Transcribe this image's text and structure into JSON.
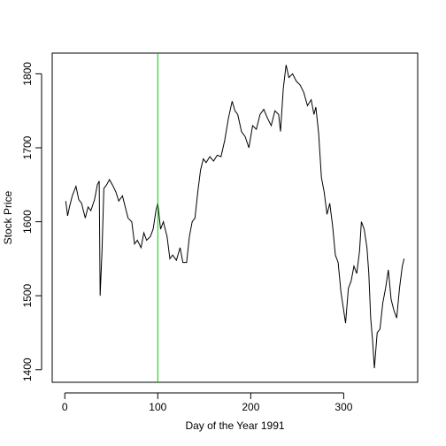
{
  "chart_data": {
    "type": "line",
    "x_label": "Day of the Year 1991",
    "y_label": "Stock Price",
    "x": [
      1,
      3,
      5,
      8,
      12,
      15,
      18,
      22,
      25,
      28,
      32,
      35,
      37,
      38,
      40,
      42,
      45,
      48,
      52,
      55,
      58,
      62,
      65,
      68,
      72,
      75,
      78,
      82,
      85,
      88,
      92,
      95,
      98,
      100,
      103,
      106,
      110,
      113,
      116,
      120,
      124,
      127,
      131,
      134,
      137,
      140,
      143,
      146,
      149,
      152,
      156,
      160,
      164,
      168,
      172,
      176,
      180,
      183,
      186,
      190,
      194,
      198,
      202,
      206,
      210,
      214,
      218,
      222,
      226,
      230,
      232,
      235,
      238,
      241,
      245,
      249,
      253,
      257,
      261,
      265,
      268,
      270,
      273,
      276,
      279,
      282,
      285,
      288,
      291,
      294,
      297,
      300,
      302,
      305,
      308,
      311,
      314,
      317,
      319,
      322,
      325,
      327,
      329,
      331,
      333,
      336,
      339,
      342,
      345,
      348,
      351,
      354,
      357,
      360,
      363,
      365
    ],
    "series": [
      {
        "color": "#000000",
        "values": [
          1628,
          1608,
          1620,
          1635,
          1648,
          1630,
          1625,
          1605,
          1620,
          1615,
          1630,
          1650,
          1655,
          1500,
          1560,
          1645,
          1650,
          1657,
          1648,
          1640,
          1628,
          1635,
          1620,
          1605,
          1600,
          1570,
          1575,
          1565,
          1585,
          1575,
          1580,
          1590,
          1615,
          1625,
          1590,
          1600,
          1580,
          1550,
          1555,
          1548,
          1565,
          1545,
          1545,
          1580,
          1600,
          1605,
          1640,
          1670,
          1685,
          1680,
          1688,
          1682,
          1690,
          1688,
          1710,
          1740,
          1763,
          1750,
          1745,
          1722,
          1715,
          1700,
          1730,
          1725,
          1745,
          1752,
          1740,
          1730,
          1750,
          1745,
          1722,
          1780,
          1812,
          1795,
          1800,
          1790,
          1785,
          1775,
          1757,
          1765,
          1745,
          1755,
          1720,
          1660,
          1640,
          1610,
          1625,
          1595,
          1555,
          1545,
          1505,
          1480,
          1463,
          1510,
          1520,
          1540,
          1530,
          1560,
          1600,
          1590,
          1565,
          1530,
          1470,
          1440,
          1402,
          1450,
          1455,
          1490,
          1510,
          1535,
          1495,
          1480,
          1470,
          1510,
          1540,
          1550
        ]
      }
    ],
    "vline": {
      "x": 100,
      "color": "#00cc00"
    },
    "xlim": [
      -13.56,
      379.56
    ],
    "xticks": [
      0,
      100,
      200,
      300
    ],
    "ylim": [
      1383,
      1828
    ],
    "yticks": [
      1400,
      1500,
      1600,
      1700,
      1800
    ]
  }
}
